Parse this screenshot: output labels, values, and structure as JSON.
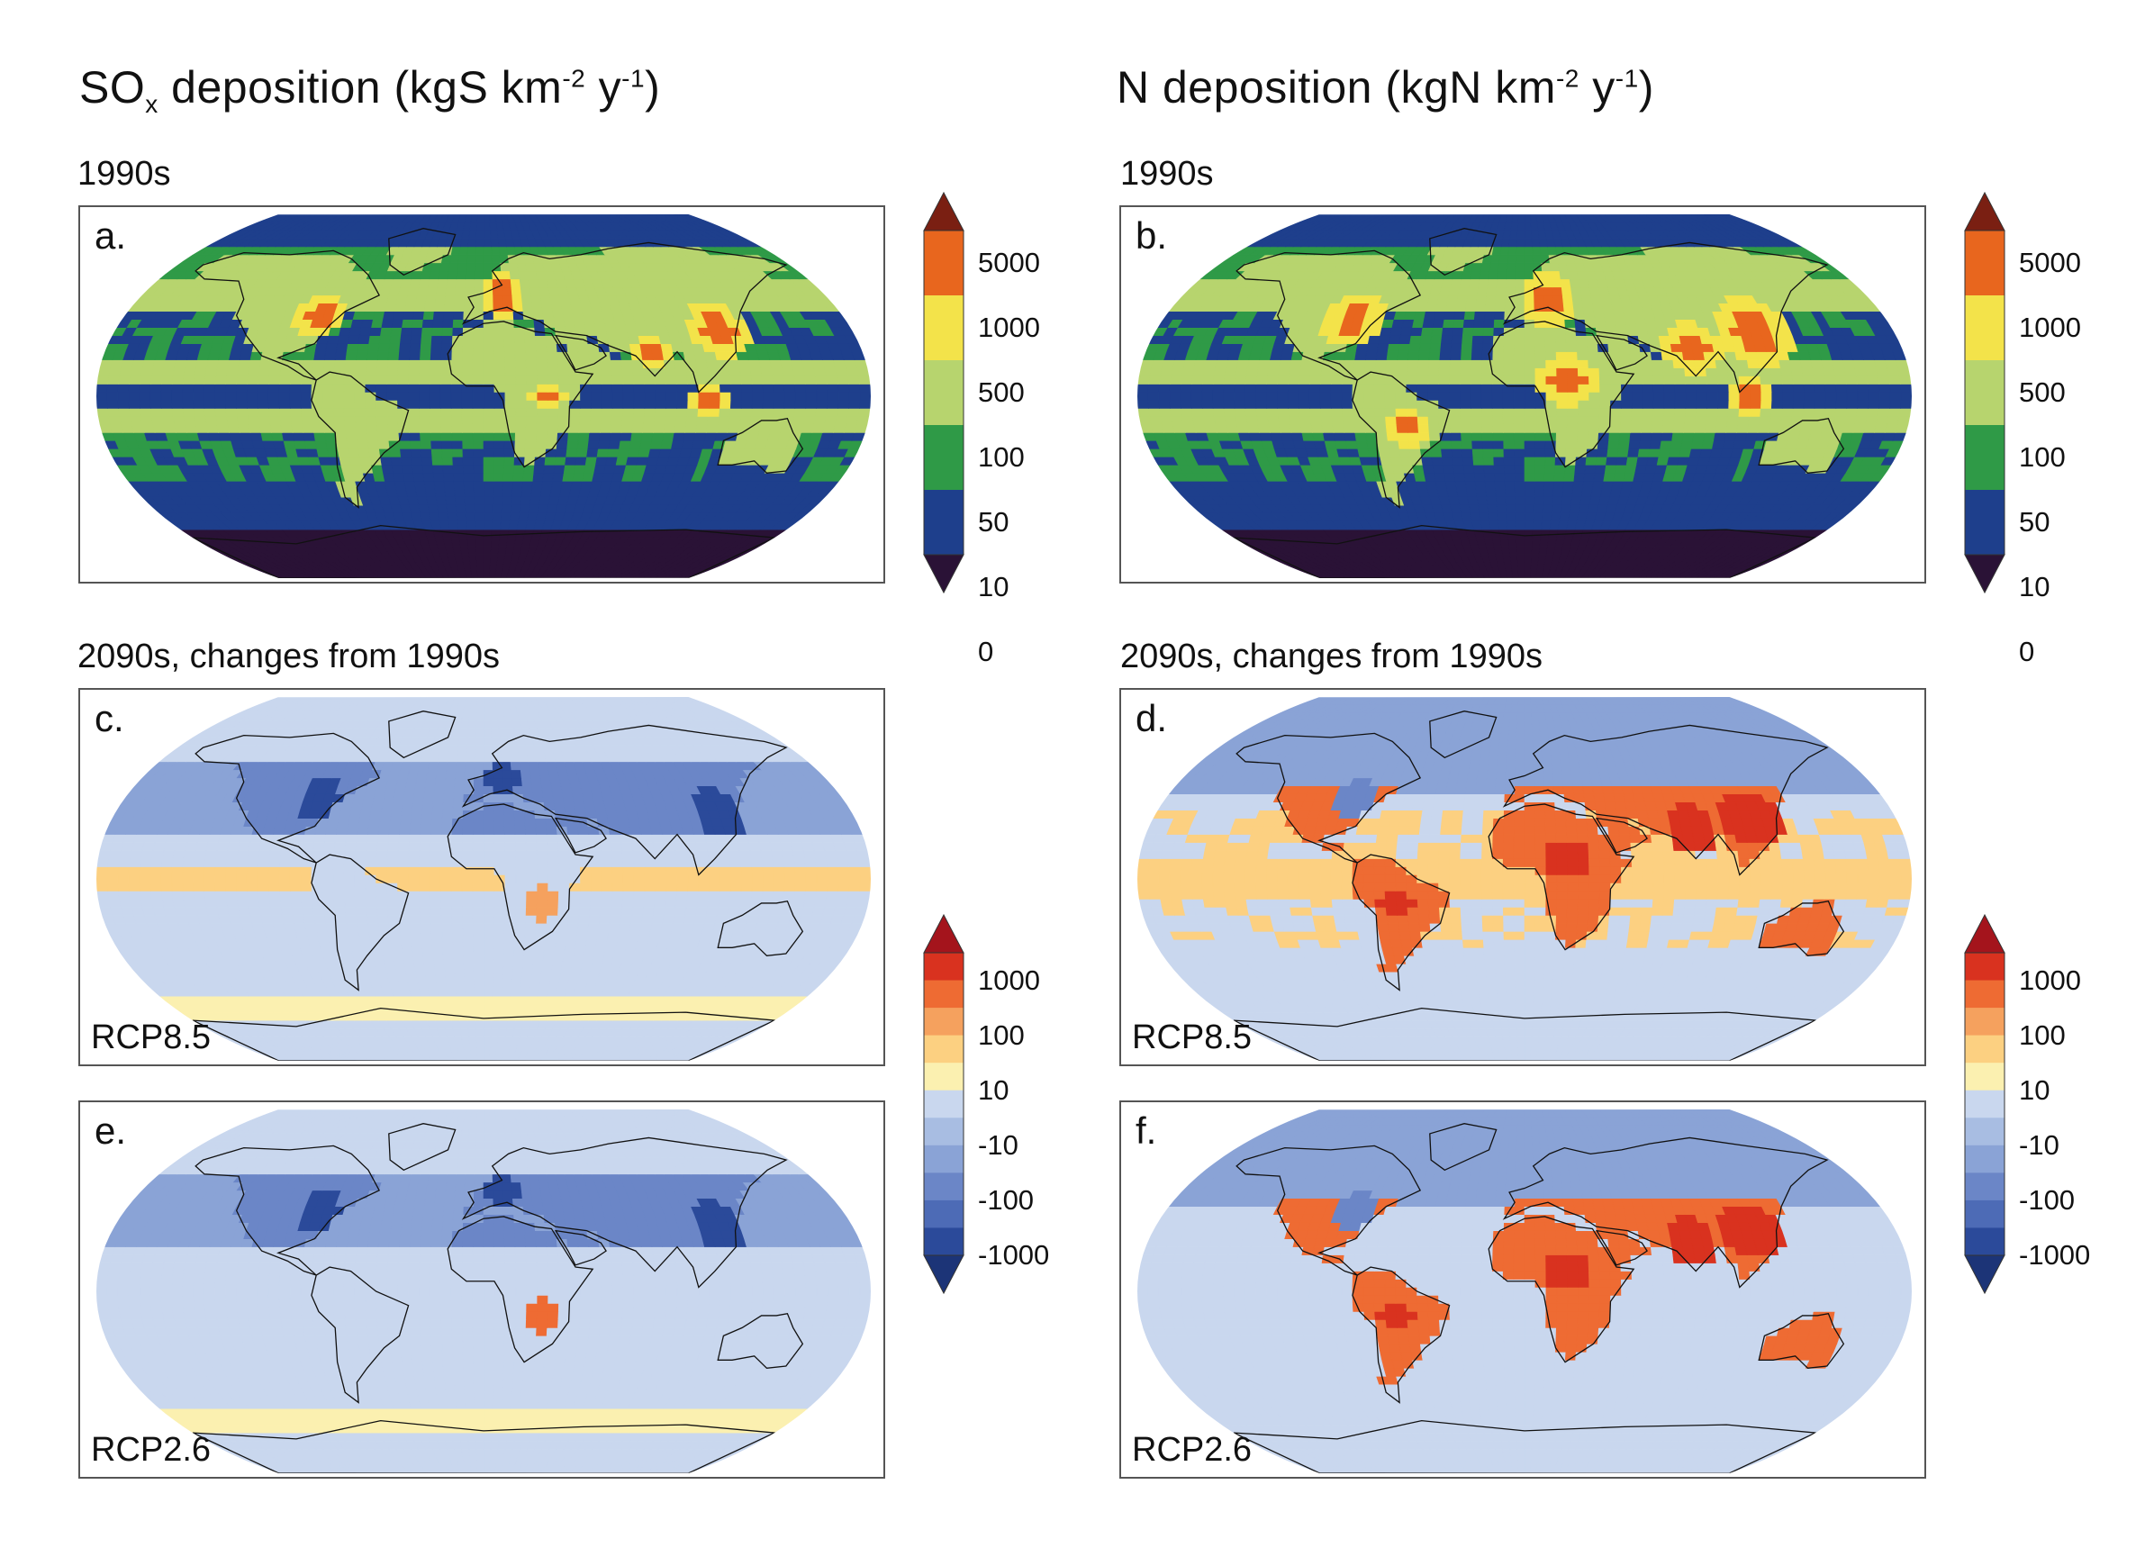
{
  "titles": {
    "sox": {
      "main": "SO",
      "sub": "x",
      "mid": " deposition (kgS km",
      "sup1": "-2",
      "mid2": " y",
      "sup2": "-1",
      "end": ")"
    },
    "n": {
      "main": "N deposition (kgN km",
      "sup1": "-2",
      "mid2": " y",
      "sup2": "-1",
      "end": ")"
    }
  },
  "row_labels": {
    "baseline_left": "1990s",
    "baseline_right": "1990s",
    "change_left": "2090s, changes from 1990s",
    "change_right": "2090s, changes from 1990s"
  },
  "panels": [
    {
      "id": "a",
      "label": "a.",
      "variable": "SOx",
      "period": "1990s",
      "scenario": ""
    },
    {
      "id": "b",
      "label": "b.",
      "variable": "N",
      "period": "1990s",
      "scenario": ""
    },
    {
      "id": "c",
      "label": "c.",
      "variable": "SOx",
      "period": "2090s change",
      "scenario": "RCP8.5"
    },
    {
      "id": "d",
      "label": "d.",
      "variable": "N",
      "period": "2090s change",
      "scenario": "RCP8.5"
    },
    {
      "id": "e",
      "label": "e.",
      "variable": "SOx",
      "period": "2090s change",
      "scenario": "RCP2.6"
    },
    {
      "id": "f",
      "label": "f.",
      "variable": "N",
      "period": "2090s change",
      "scenario": "RCP2.6"
    }
  ],
  "colorbars": {
    "absolute": {
      "ticks": [
        "5000",
        "1000",
        "500",
        "100",
        "50",
        "10",
        "0"
      ],
      "colors_top_to_bottom": [
        "#7a1f12",
        "#e8661e",
        "#f3e34a",
        "#b7d46e",
        "#2f9a47",
        "#1e3f8c",
        "#2a1236"
      ]
    },
    "change": {
      "ticks": [
        "1000",
        "100",
        "10",
        "-10",
        "-100",
        "-1000"
      ],
      "colors_top_to_bottom": [
        "#a4141c",
        "#d9321f",
        "#ee6b33",
        "#f5a15e",
        "#fcd081",
        "#fbf0b0",
        "#c9d7ee",
        "#a8bde2",
        "#8aa3d6",
        "#6b86c7",
        "#4d6bb6",
        "#2b4a9a",
        "#1c3477"
      ]
    }
  },
  "colors": {
    "abs_ocean_cold": "#1e3f8c",
    "abs_mid": "#2f9a47",
    "abs_high": "#b7d46e",
    "change_base": "#a8bde2",
    "change_pos": "#e8561e"
  }
}
